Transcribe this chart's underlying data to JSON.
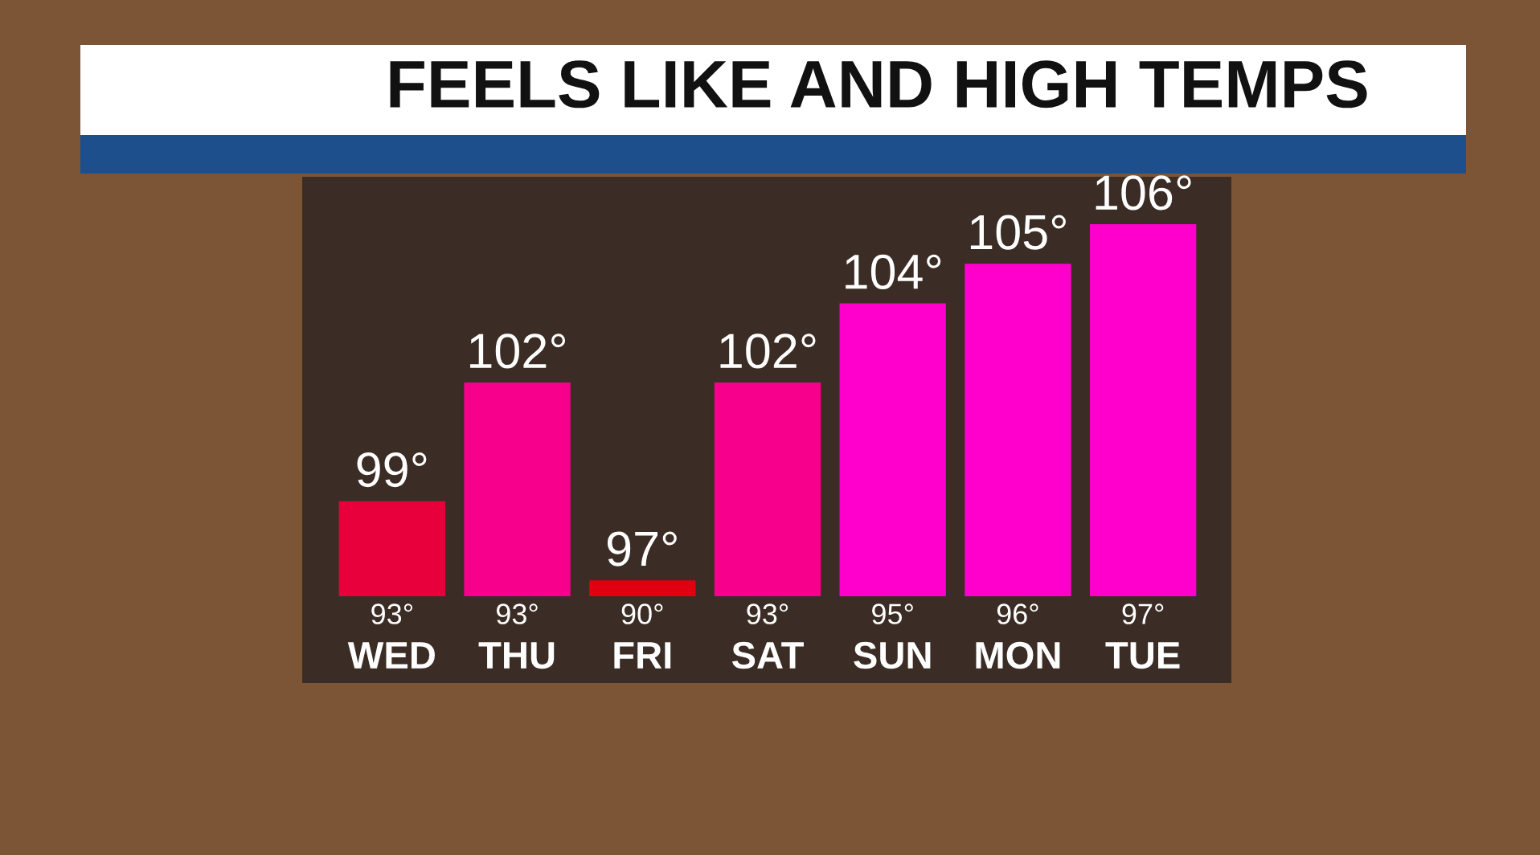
{
  "chart_data": {
    "type": "bar",
    "title": "FEELS LIKE AND HIGH TEMPS",
    "categories": [
      "WED",
      "THU",
      "FRI",
      "SAT",
      "SUN",
      "MON",
      "TUE"
    ],
    "values": [
      99,
      102,
      97,
      102,
      104,
      105,
      106
    ],
    "value_labels": [
      "99°",
      "102°",
      "97°",
      "102°",
      "104°",
      "105°",
      "106°"
    ],
    "colors": [
      "#e8003c",
      "#f7008c",
      "#e00010",
      "#f7008c",
      "#ff00cc",
      "#ff00cc",
      "#ff00cc"
    ],
    "ylim": [
      96.6,
      107.2
    ],
    "tick_labels": "x",
    "grid": false,
    "legend": false,
    "annotations": [
      "93°",
      "93°",
      "90°",
      "93°",
      "95°",
      "96°",
      "97°"
    ]
  }
}
